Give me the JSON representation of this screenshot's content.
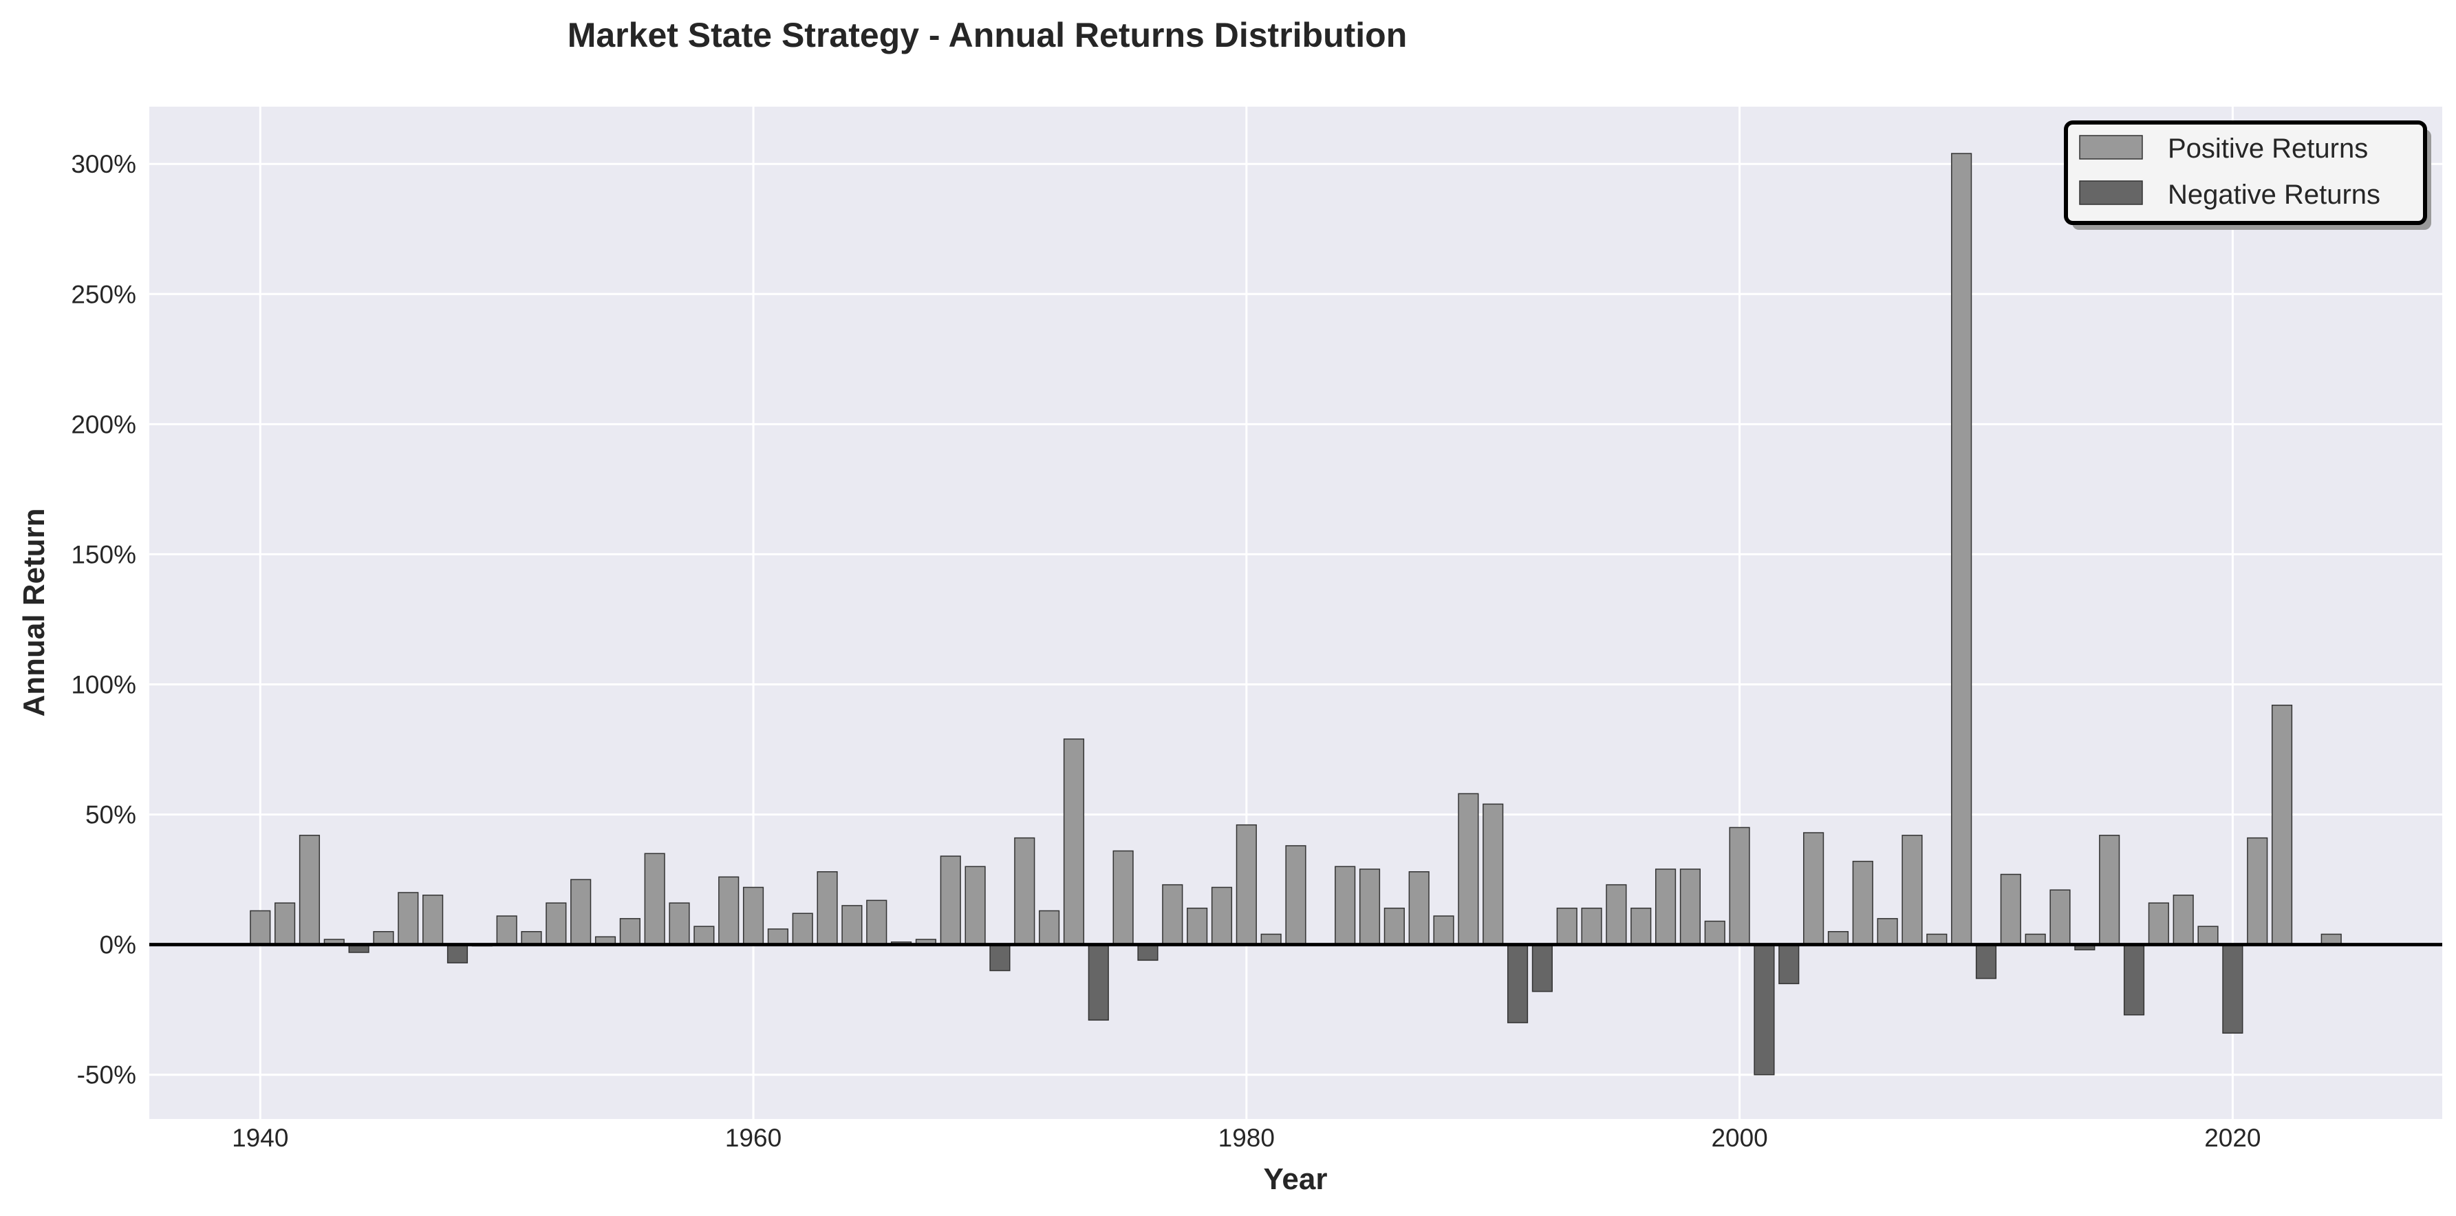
{
  "chart_data": {
    "type": "bar",
    "title": "Market State Strategy - Annual Returns Distribution",
    "xlabel": "Year",
    "ylabel": "Annual Return",
    "xlim": [
      1935.5,
      2028.5
    ],
    "ylim": [
      -67,
      322
    ],
    "x_ticks": [
      1940,
      1960,
      1980,
      2000,
      2020
    ],
    "y_ticks": [
      -50,
      0,
      50,
      100,
      150,
      200,
      250,
      300
    ],
    "y_tick_labels": [
      "-50%",
      "0%",
      "50%",
      "100%",
      "150%",
      "200%",
      "250%",
      "300%"
    ],
    "grid": true,
    "legend_position": "top-right",
    "colors": {
      "background": "#eaeaf2",
      "positive": "#999999",
      "negative": "#666666",
      "zero_line": "#000000",
      "legend_bg": "#f4f4f4"
    },
    "series": [
      {
        "name": "Positive Returns",
        "color": "#999999"
      },
      {
        "name": "Negative Returns",
        "color": "#666666"
      }
    ],
    "years": [
      1940,
      1941,
      1942,
      1943,
      1944,
      1945,
      1946,
      1947,
      1948,
      1949,
      1950,
      1951,
      1952,
      1953,
      1954,
      1955,
      1956,
      1957,
      1958,
      1959,
      1960,
      1961,
      1962,
      1963,
      1964,
      1965,
      1966,
      1967,
      1968,
      1969,
      1970,
      1971,
      1972,
      1973,
      1974,
      1975,
      1976,
      1977,
      1978,
      1979,
      1980,
      1981,
      1982,
      1984,
      1985,
      1986,
      1987,
      1988,
      1989,
      1990,
      1991,
      1992,
      1993,
      1994,
      1995,
      1996,
      1997,
      1998,
      1999,
      2000,
      2001,
      2002,
      2003,
      2004,
      2005,
      2006,
      2007,
      2008,
      2009,
      2010,
      2011,
      2012,
      2013,
      2014,
      2015,
      2016,
      2017,
      2018,
      2019,
      2020,
      2021,
      2022,
      2024
    ],
    "returns": [
      13,
      16,
      42,
      2,
      -3,
      5,
      20,
      19,
      -7,
      -0.5,
      11,
      5,
      16,
      25,
      3,
      10,
      35,
      16,
      7,
      26,
      22,
      6,
      12,
      28,
      15,
      17,
      1,
      2,
      34,
      30,
      -10,
      41,
      13,
      79,
      -29,
      36,
      -6,
      23,
      14,
      22,
      46,
      4,
      38,
      30,
      29,
      14,
      28,
      11,
      58,
      54,
      -30,
      -18,
      14,
      14,
      23,
      14,
      29,
      29,
      9,
      45,
      -50,
      -15,
      43,
      5,
      32,
      10,
      42,
      4,
      304,
      -13,
      27,
      4,
      21,
      -2,
      42,
      -27,
      16,
      19,
      7,
      -34,
      41,
      92,
      4
    ]
  }
}
